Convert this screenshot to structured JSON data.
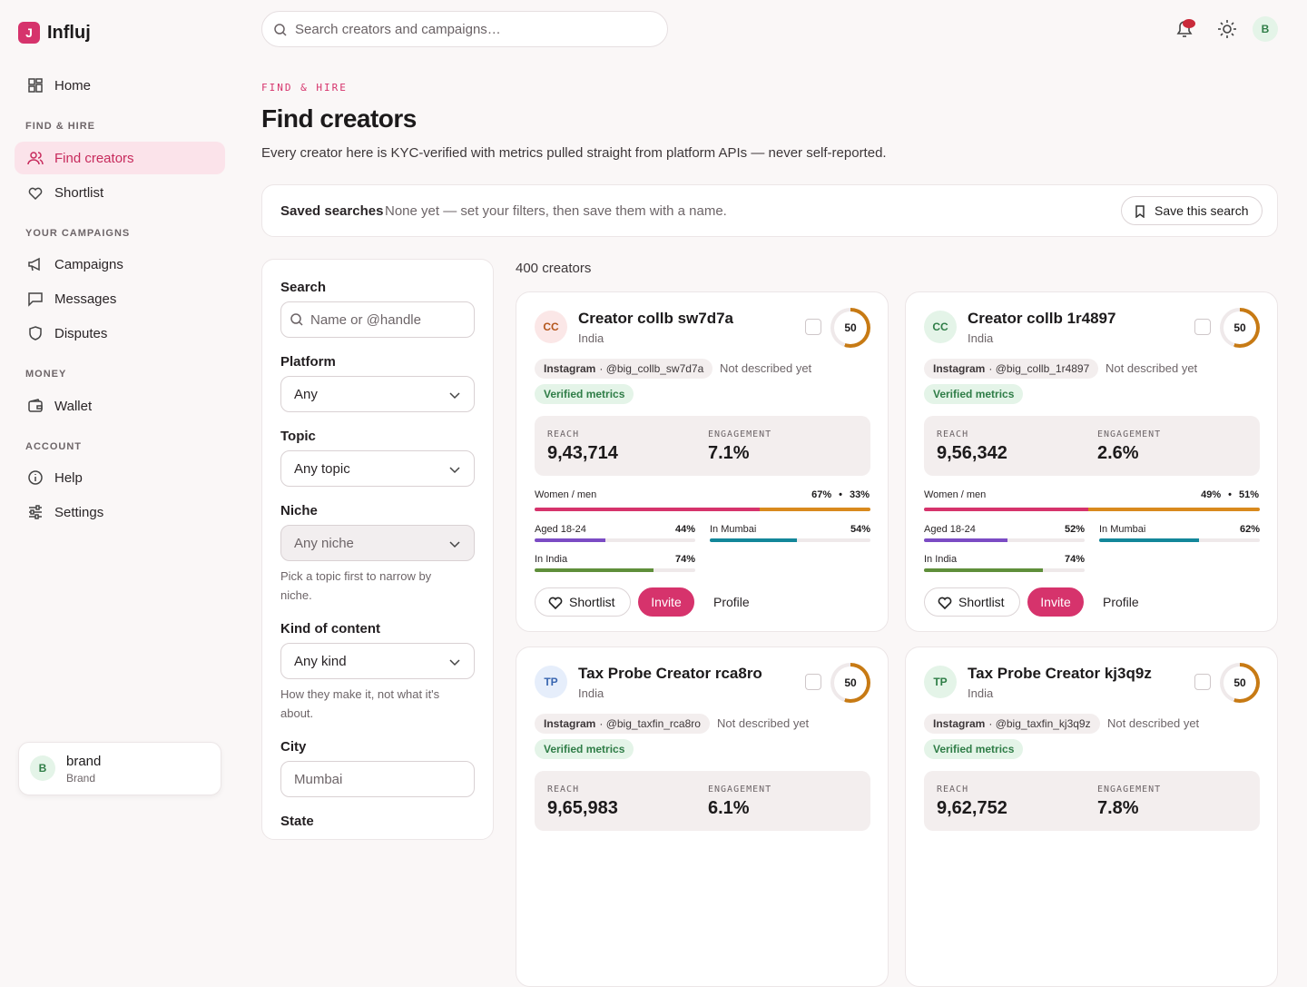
{
  "brand": "Influj",
  "topbar": {
    "search_placeholder": "Search creators and campaigns…",
    "avatar": "B"
  },
  "nav": [
    {
      "items": [
        {
          "label": "Home"
        }
      ]
    },
    {
      "heading": "FIND & HIRE",
      "items": [
        {
          "label": "Find creators"
        },
        {
          "label": "Shortlist"
        }
      ]
    },
    {
      "heading": "YOUR CAMPAIGNS",
      "items": [
        {
          "label": "Campaigns"
        },
        {
          "label": "Messages"
        },
        {
          "label": "Disputes"
        }
      ]
    },
    {
      "heading": "MONEY",
      "items": [
        {
          "label": "Wallet"
        }
      ]
    },
    {
      "heading": "ACCOUNT",
      "items": [
        {
          "label": "Help"
        },
        {
          "label": "Settings"
        }
      ]
    }
  ],
  "user": {
    "initial": "B",
    "name": "brand",
    "role": "Brand"
  },
  "header": {
    "eyebrow": "FIND & HIRE",
    "title": "Find creators",
    "subtitle": "Every creator here is KYC-verified with metrics pulled straight from platform APIs — never self-reported."
  },
  "saved": {
    "label": "Saved searches",
    "text": "None yet — set your filters, then save them with a name.",
    "button": "Save this search"
  },
  "filters": [
    {
      "label": "Search",
      "placeholder": "Name or @handle"
    },
    {
      "label": "Platform",
      "value": "Any"
    },
    {
      "label": "Topic",
      "value": "Any topic"
    },
    {
      "label": "Niche",
      "value": "Any niche",
      "hint": "Pick a topic first to narrow by niche."
    },
    {
      "label": "Kind of content",
      "value": "Any kind",
      "hint": "How they make it, not what it's about."
    },
    {
      "label": "City",
      "placeholder": "Mumbai"
    },
    {
      "label": "State"
    }
  ],
  "count": "400 creators",
  "card_labels": {
    "reach": "REACH",
    "engagement": "ENGAGEMENT",
    "gender": "Women / men",
    "age": "Aged 18-24",
    "city": "In Mumbai",
    "country": "In India",
    "shortlist": "Shortlist",
    "invite": "Invite",
    "profile": "Profile",
    "badge": "Verified metrics",
    "dot": "•"
  },
  "cards": [
    {
      "initials": "CC",
      "name": "Creator collb sw7d7a",
      "location": "India",
      "score": 50,
      "platform": "Instagram",
      "handle": "· @big_collb_sw7d7a",
      "description": "Not described yet",
      "reach": "9,43,714",
      "engagement": "7.1%",
      "women": {
        "value": 67,
        "label": "67%"
      },
      "men": {
        "value": 33,
        "label": "33%"
      },
      "age": {
        "value": 44,
        "label": "44%"
      },
      "city": {
        "value": 54,
        "label": "54%"
      },
      "country": {
        "value": 74,
        "label": "74%"
      }
    },
    {
      "initials": "CC",
      "name": "Creator collb 1r4897",
      "location": "India",
      "score": 50,
      "platform": "Instagram",
      "handle": "· @big_collb_1r4897",
      "description": "Not described yet",
      "reach": "9,56,342",
      "engagement": "2.6%",
      "women": {
        "value": 49,
        "label": "49%"
      },
      "men": {
        "value": 51,
        "label": "51%"
      },
      "age": {
        "value": 52,
        "label": "52%"
      },
      "city": {
        "value": 62,
        "label": "62%"
      },
      "country": {
        "value": 74,
        "label": "74%"
      }
    },
    {
      "initials": "TP",
      "name": "Tax Probe Creator rca8ro",
      "location": "India",
      "score": 50,
      "platform": "Instagram",
      "handle": "· @big_taxfin_rca8ro",
      "description": "Not described yet",
      "reach": "9,65,983",
      "engagement": "6.1%"
    },
    {
      "initials": "TP",
      "name": "Tax Probe Creator kj3q9z",
      "location": "India",
      "score": 50,
      "platform": "Instagram",
      "handle": "· @big_taxfin_kj3q9z",
      "description": "Not described yet",
      "reach": "9,62,752",
      "engagement": "7.8%"
    }
  ]
}
